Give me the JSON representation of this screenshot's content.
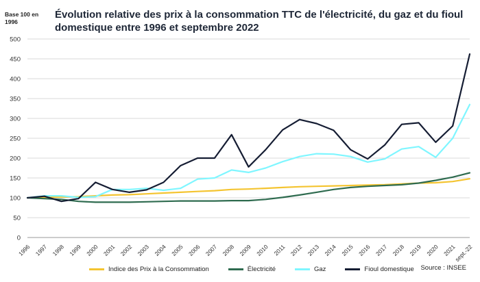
{
  "chart_data": {
    "type": "line",
    "title": "Évolution relative des prix à la consommation TTC de l'électricité, du gaz et du fioul domestique entre 1996 et septembre 2022",
    "ylabel": "Base 100 en 1996",
    "xlabel": "",
    "ylim": [
      0,
      500
    ],
    "yticks": [
      0,
      50,
      100,
      150,
      200,
      250,
      300,
      350,
      400,
      450,
      500
    ],
    "grid": "horizontal",
    "legend_position": "bottom",
    "source": "Source : INSEE",
    "categories": [
      "1996",
      "1997",
      "1998",
      "1999",
      "2000",
      "2001",
      "2002",
      "2003",
      "2004",
      "2005",
      "2006",
      "2007",
      "2008",
      "2009",
      "2010",
      "2011",
      "2012",
      "2013",
      "2014",
      "2015",
      "2016",
      "2017",
      "2018",
      "2019",
      "2020",
      "2021",
      "sept.-22"
    ],
    "series": [
      {
        "name": "Indice des Prix à la Consommation",
        "color": "#f4c430",
        "values": [
          100,
          101,
          102,
          103,
          105,
          107,
          108,
          110,
          112,
          114,
          116,
          118,
          121,
          122,
          124,
          126,
          128,
          129,
          130,
          131,
          132,
          133,
          135,
          137,
          138,
          141,
          148
        ]
      },
      {
        "name": "Électricité",
        "color": "#2e6b4f",
        "values": [
          100,
          98,
          96,
          91,
          89,
          89,
          89,
          90,
          91,
          92,
          92,
          92,
          93,
          93,
          96,
          101,
          107,
          114,
          121,
          126,
          129,
          131,
          133,
          137,
          144,
          152,
          163
        ]
      },
      {
        "name": "Gaz",
        "color": "#7ff6ff",
        "values": [
          100,
          105,
          105,
          101,
          103,
          121,
          121,
          124,
          119,
          124,
          147,
          150,
          170,
          164,
          175,
          191,
          204,
          211,
          210,
          204,
          190,
          198,
          223,
          229,
          202,
          250,
          335
        ]
      },
      {
        "name": "Fioul domestique",
        "color": "#151d33",
        "values": [
          100,
          104,
          91,
          98,
          139,
          121,
          114,
          120,
          139,
          181,
          200,
          200,
          259,
          178,
          221,
          271,
          297,
          287,
          270,
          221,
          198,
          233,
          285,
          289,
          240,
          281,
          462
        ]
      }
    ]
  }
}
